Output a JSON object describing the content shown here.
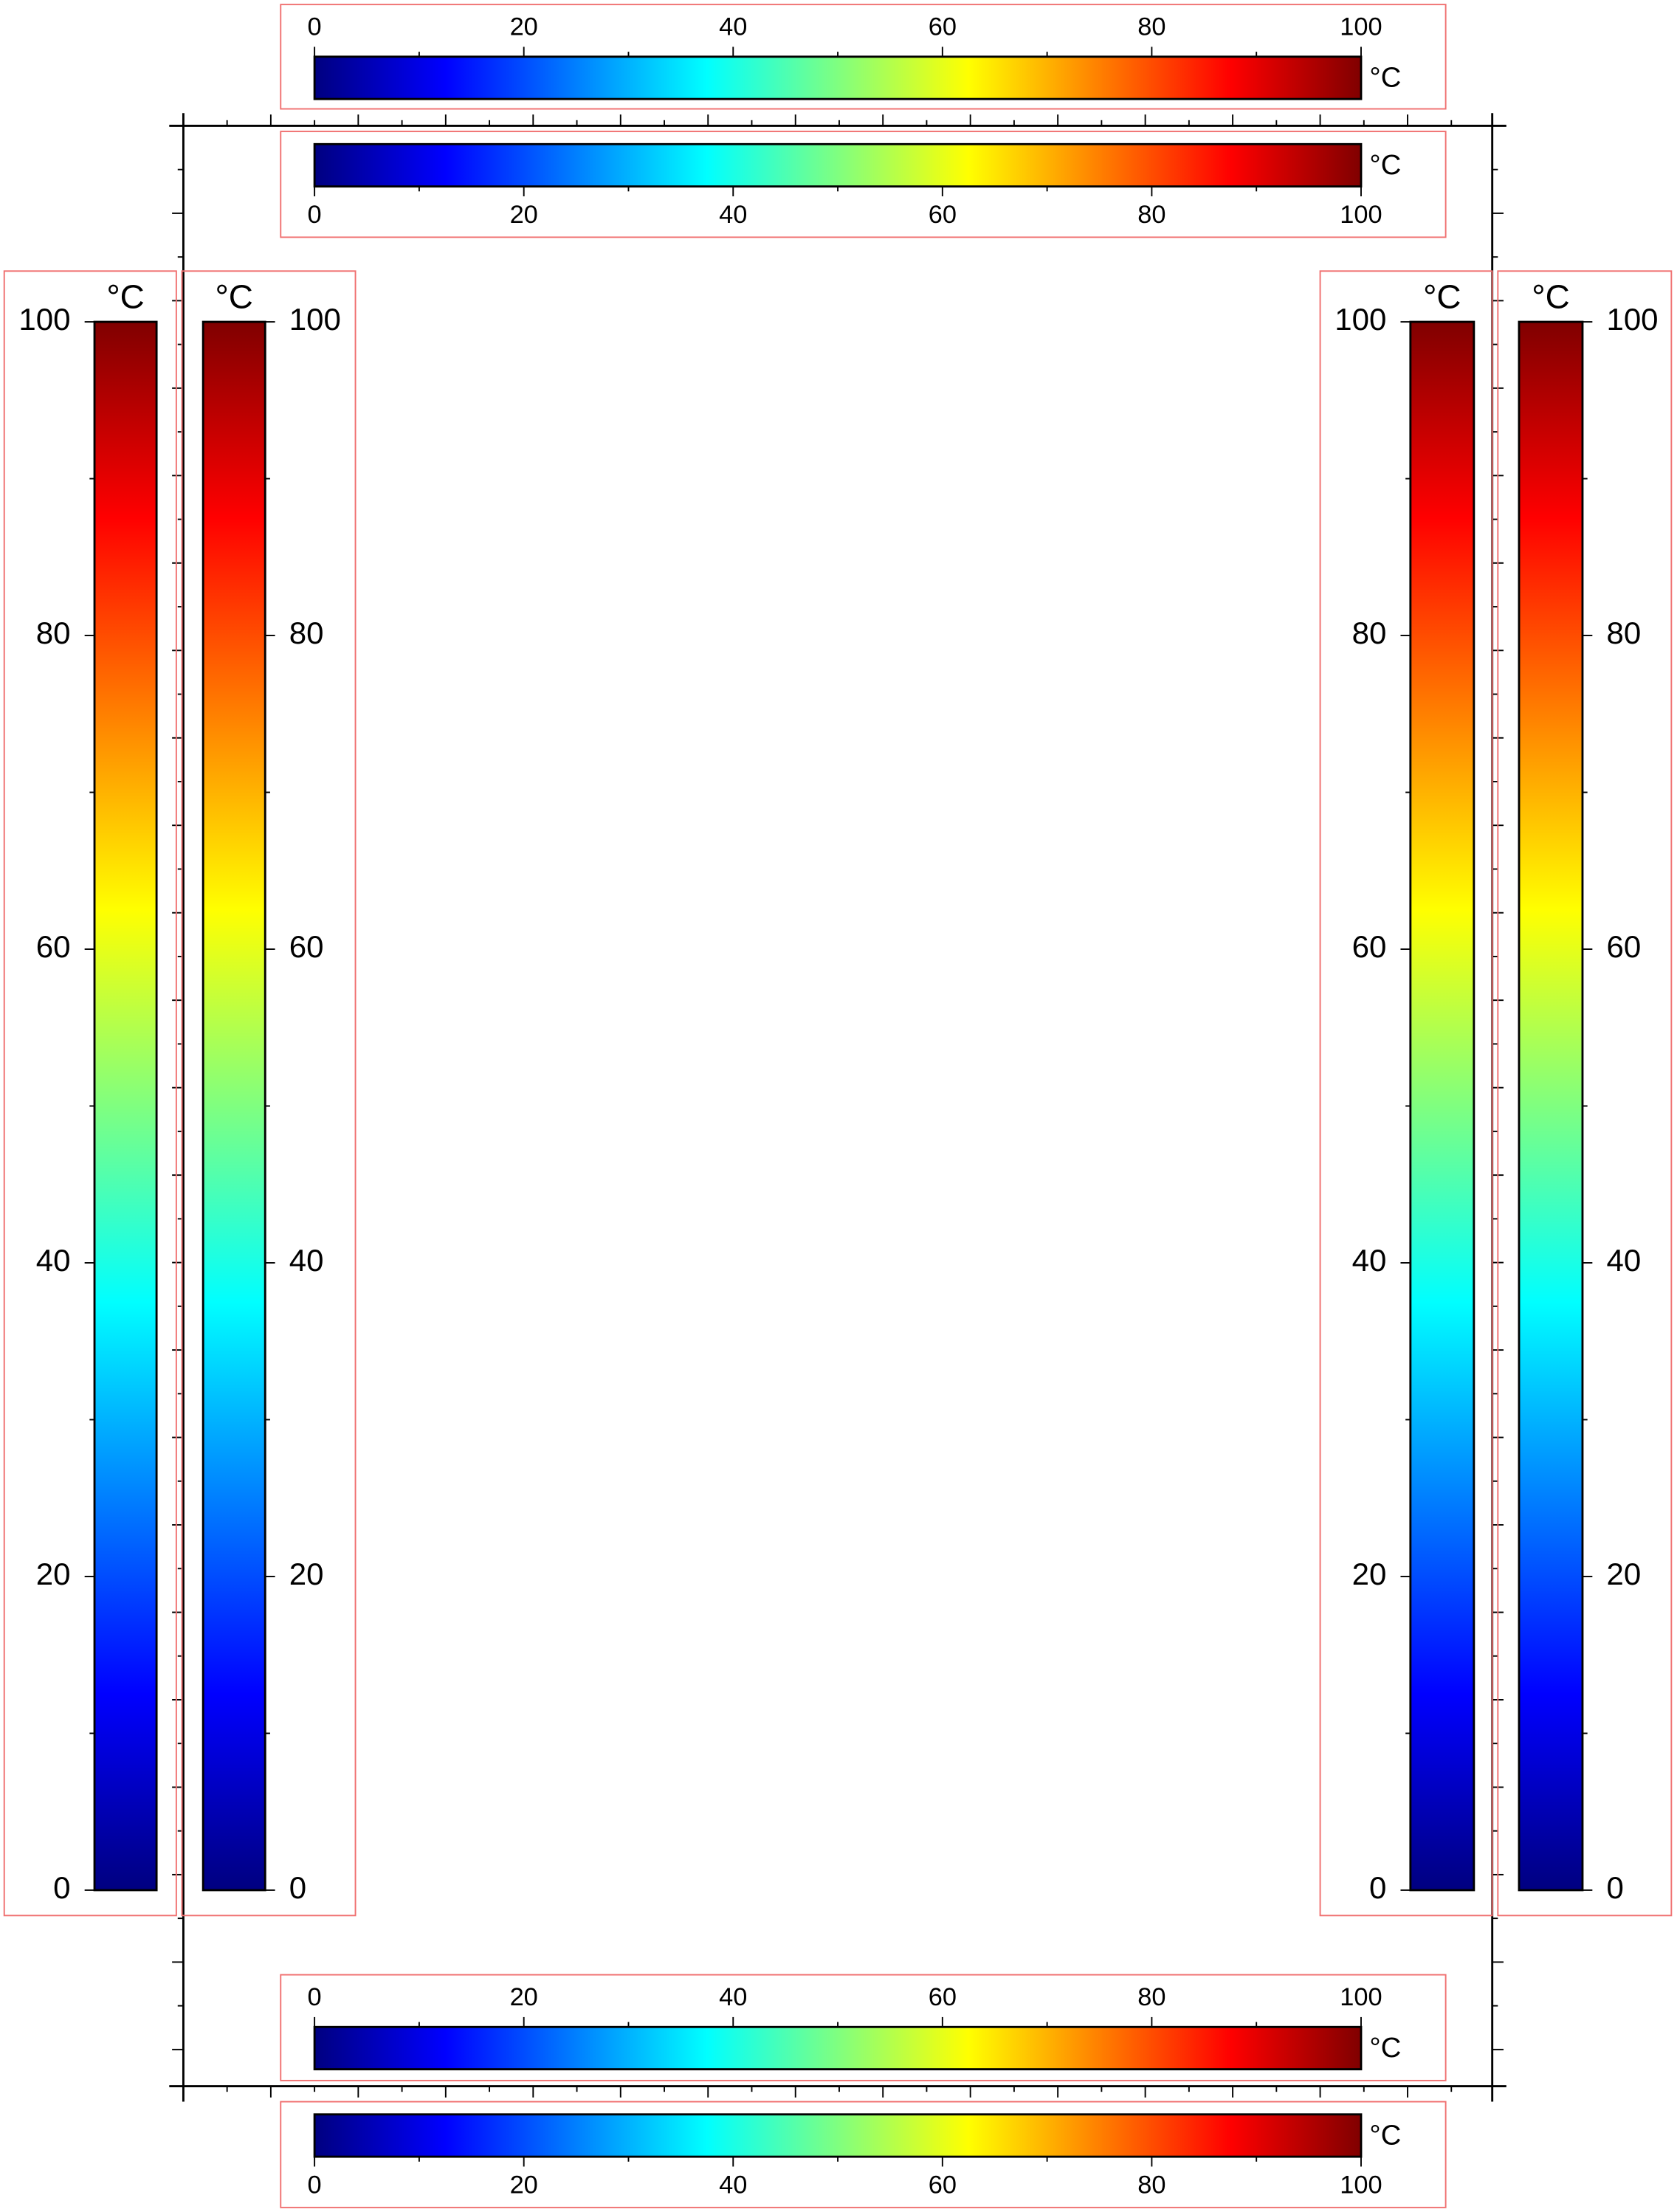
{
  "chart_data": [
    {
      "type": "colorbar",
      "label": "°C",
      "cmap": "jet",
      "xlim": [
        0,
        100
      ],
      "xticks": [
        0,
        20,
        40,
        60,
        80,
        100
      ],
      "minor_ticks": [
        10,
        30,
        50,
        70,
        90
      ]
    },
    {
      "type": "colorbar",
      "label": "°C",
      "cmap": "jet",
      "xlim": [
        0,
        100
      ],
      "xticks": [
        0,
        20,
        40,
        60,
        80,
        100
      ],
      "minor_ticks": [
        10,
        30,
        50,
        70,
        90
      ]
    },
    {
      "type": "colorbar",
      "label": "°C",
      "cmap": "jet",
      "xlim": [
        0,
        100
      ],
      "xticks": [
        0,
        20,
        40,
        60,
        80,
        100
      ],
      "minor_ticks": [
        10,
        30,
        50,
        70,
        90
      ]
    },
    {
      "type": "colorbar",
      "label": "°C",
      "cmap": "jet",
      "xlim": [
        0,
        100
      ],
      "xticks": [
        0,
        20,
        40,
        60,
        80,
        100
      ],
      "minor_ticks": [
        10,
        30,
        50,
        70,
        90
      ]
    },
    {
      "type": "colorbar",
      "label": "°C",
      "cmap": "jet",
      "ylim": [
        0,
        100
      ],
      "yticks": [
        0,
        20,
        40,
        60,
        80,
        100
      ],
      "minor_ticks": [
        10,
        30,
        50,
        70,
        90
      ]
    },
    {
      "type": "colorbar",
      "label": "°C",
      "cmap": "jet",
      "ylim": [
        0,
        100
      ],
      "yticks": [
        0,
        20,
        40,
        60,
        80,
        100
      ],
      "minor_ticks": [
        10,
        30,
        50,
        70,
        90
      ]
    },
    {
      "type": "colorbar",
      "label": "°C",
      "cmap": "jet",
      "ylim": [
        0,
        100
      ],
      "yticks": [
        0,
        20,
        40,
        60,
        80,
        100
      ],
      "minor_ticks": [
        10,
        30,
        50,
        70,
        90
      ]
    },
    {
      "type": "colorbar",
      "label": "°C",
      "cmap": "jet",
      "ylim": [
        0,
        100
      ],
      "yticks": [
        0,
        20,
        40,
        60,
        80,
        100
      ],
      "minor_ticks": [
        10,
        30,
        50,
        70,
        90
      ]
    }
  ]
}
